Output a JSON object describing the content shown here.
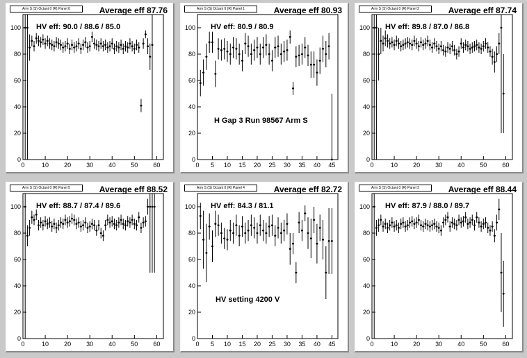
{
  "panels": [
    {
      "header": "Arm S (S) Octant 0 (R) Panel 0",
      "avg": "Average eff 87.76",
      "hv": "HV eff:    90.0 / 88.6 / 85.0",
      "note": ""
    },
    {
      "header": "Arm S (S) Octant 0 (R) Panel 1",
      "avg": "Average eff 80.93",
      "hv": "HV eff:    80.9 / 80.9",
      "note": "H Gap 3 Run 98567 Arm S"
    },
    {
      "header": "Arm S (S) Octant 0 (R) Panel 2",
      "avg": "Average eff 87.74",
      "hv": "HV eff:    89.8 / 87.0 / 86.8",
      "note": ""
    },
    {
      "header": "Arm S (S) Octant 0 (R) Panel 5",
      "avg": "Average eff 88.52",
      "hv": "HV eff:    88.7 / 87.4 / 89.6",
      "note": ""
    },
    {
      "header": "Arm S (S) Octant 0 (R) Panel 4",
      "avg": "Average eff 82.72",
      "hv": "HV eff:    84.3 / 81.1",
      "note": "HV setting 4200 V"
    },
    {
      "header": "Arm S (S) Octant 0 (R) Panel 3",
      "avg": "Average eff 88.44",
      "hv": "HV eff:    87.9 / 88.0 / 89.7",
      "note": ""
    }
  ],
  "chart_data": [
    {
      "type": "scatter",
      "xlim": [
        0,
        63
      ],
      "ylim": [
        0,
        110
      ],
      "xticks": [
        0,
        10,
        20,
        30,
        40,
        50,
        60
      ],
      "yticks": [
        0,
        20,
        40,
        60,
        80,
        100
      ],
      "x": [
        1,
        2,
        3,
        4,
        5,
        6,
        7,
        8,
        9,
        10,
        11,
        12,
        13,
        14,
        15,
        16,
        17,
        18,
        19,
        20,
        21,
        22,
        23,
        24,
        25,
        26,
        27,
        28,
        29,
        30,
        31,
        32,
        33,
        34,
        35,
        36,
        37,
        38,
        39,
        40,
        41,
        42,
        43,
        44,
        45,
        46,
        47,
        48,
        49,
        50,
        51,
        52,
        53,
        54,
        55,
        56,
        57,
        58
      ],
      "y": [
        100,
        100,
        85,
        90,
        86,
        92,
        90,
        89,
        91,
        88,
        90,
        88,
        87,
        86,
        89,
        88,
        87,
        85,
        86,
        88,
        84,
        87,
        85,
        86,
        88,
        84,
        87,
        89,
        85,
        86,
        93,
        88,
        87,
        86,
        88,
        86,
        87,
        85,
        86,
        88,
        84,
        86,
        85,
        87,
        84,
        86,
        85,
        88,
        86,
        84,
        87,
        85,
        41,
        88,
        95,
        86,
        78,
        87
      ],
      "err": [
        100,
        100,
        10,
        4,
        4,
        4,
        4,
        4,
        4,
        4,
        4,
        4,
        4,
        4,
        4,
        4,
        4,
        4,
        4,
        4,
        4,
        4,
        4,
        4,
        4,
        4,
        4,
        4,
        4,
        4,
        4,
        4,
        4,
        4,
        4,
        4,
        4,
        4,
        4,
        4,
        4,
        4,
        4,
        4,
        4,
        4,
        4,
        4,
        4,
        4,
        4,
        4,
        5,
        4,
        3,
        6,
        10,
        100
      ]
    },
    {
      "type": "scatter",
      "xlim": [
        0,
        47
      ],
      "ylim": [
        0,
        110
      ],
      "xticks": [
        0,
        5,
        10,
        15,
        20,
        25,
        30,
        35,
        40,
        45
      ],
      "yticks": [
        0,
        20,
        40,
        60,
        80,
        100
      ],
      "x": [
        1,
        2,
        3,
        4,
        5,
        6,
        7,
        8,
        9,
        10,
        11,
        12,
        13,
        14,
        15,
        16,
        17,
        18,
        19,
        20,
        21,
        22,
        23,
        24,
        25,
        26,
        27,
        28,
        29,
        30,
        31,
        32,
        33,
        34,
        35,
        36,
        37,
        38,
        39,
        40,
        41,
        42,
        43,
        44,
        45
      ],
      "y": [
        58,
        66,
        78,
        89,
        89,
        65,
        84,
        83,
        84,
        82,
        80,
        85,
        84,
        80,
        75,
        88,
        86,
        80,
        83,
        85,
        80,
        85,
        87,
        80,
        75,
        85,
        86,
        80,
        82,
        83,
        93,
        54,
        78,
        79,
        80,
        85,
        79,
        72,
        72,
        66,
        75,
        84,
        80,
        86,
        0
      ],
      "err": [
        10,
        10,
        10,
        8,
        8,
        10,
        8,
        8,
        8,
        8,
        8,
        8,
        8,
        8,
        8,
        8,
        8,
        8,
        8,
        8,
        8,
        8,
        8,
        8,
        8,
        8,
        8,
        8,
        8,
        8,
        5,
        5,
        8,
        8,
        8,
        8,
        8,
        10,
        10,
        10,
        10,
        10,
        10,
        10,
        50
      ]
    },
    {
      "type": "scatter",
      "xlim": [
        0,
        63
      ],
      "ylim": [
        0,
        110
      ],
      "xticks": [
        0,
        10,
        20,
        30,
        40,
        50,
        60
      ],
      "yticks": [
        0,
        20,
        40,
        60,
        80,
        100
      ],
      "x": [
        1,
        2,
        3,
        4,
        5,
        6,
        7,
        8,
        9,
        10,
        11,
        12,
        13,
        14,
        15,
        16,
        17,
        18,
        19,
        20,
        21,
        22,
        23,
        24,
        25,
        26,
        27,
        28,
        29,
        30,
        31,
        32,
        33,
        34,
        35,
        36,
        37,
        38,
        39,
        40,
        41,
        42,
        43,
        44,
        45,
        46,
        47,
        48,
        49,
        50,
        51,
        52,
        53,
        54,
        55,
        56,
        57,
        58,
        59
      ],
      "y": [
        100,
        100,
        80,
        90,
        88,
        92,
        90,
        88,
        89,
        87,
        90,
        88,
        86,
        87,
        88,
        89,
        88,
        87,
        90,
        88,
        86,
        89,
        87,
        88,
        90,
        87,
        85,
        88,
        86,
        84,
        86,
        83,
        82,
        85,
        84,
        86,
        83,
        80,
        82,
        88,
        85,
        87,
        86,
        84,
        85,
        86,
        87,
        85,
        84,
        86,
        88,
        85,
        82,
        78,
        74,
        80,
        88,
        100,
        50
      ],
      "err": [
        100,
        100,
        20,
        10,
        6,
        6,
        5,
        4,
        4,
        4,
        4,
        4,
        4,
        4,
        4,
        4,
        4,
        4,
        4,
        4,
        4,
        4,
        4,
        4,
        4,
        4,
        4,
        4,
        4,
        4,
        4,
        4,
        4,
        4,
        4,
        4,
        4,
        4,
        4,
        4,
        4,
        4,
        4,
        4,
        4,
        4,
        4,
        4,
        4,
        4,
        4,
        4,
        4,
        6,
        8,
        6,
        8,
        80,
        30
      ]
    },
    {
      "type": "scatter",
      "xlim": [
        0,
        63
      ],
      "ylim": [
        0,
        110
      ],
      "xticks": [
        0,
        10,
        20,
        30,
        40,
        50,
        60
      ],
      "yticks": [
        0,
        20,
        40,
        60,
        80,
        100
      ],
      "x": [
        1,
        2,
        3,
        4,
        5,
        6,
        7,
        8,
        9,
        10,
        11,
        12,
        13,
        14,
        15,
        16,
        17,
        18,
        19,
        20,
        21,
        22,
        23,
        24,
        25,
        26,
        27,
        28,
        29,
        30,
        31,
        32,
        33,
        34,
        35,
        36,
        37,
        38,
        39,
        40,
        41,
        42,
        43,
        44,
        45,
        46,
        47,
        48,
        49,
        50,
        51,
        52,
        53,
        54,
        55,
        56,
        57,
        58,
        59
      ],
      "y": [
        100,
        78,
        84,
        92,
        90,
        94,
        86,
        88,
        86,
        89,
        87,
        88,
        85,
        87,
        84,
        86,
        88,
        87,
        90,
        88,
        89,
        91,
        90,
        87,
        88,
        85,
        86,
        88,
        84,
        85,
        87,
        86,
        82,
        86,
        80,
        78,
        86,
        90,
        88,
        89,
        87,
        86,
        88,
        90,
        87,
        86,
        89,
        88,
        90,
        87,
        86,
        92,
        84,
        88,
        89,
        100,
        100,
        100,
        100
      ],
      "err": [
        100,
        8,
        6,
        5,
        4,
        4,
        4,
        4,
        4,
        4,
        4,
        4,
        4,
        4,
        4,
        4,
        4,
        4,
        4,
        4,
        4,
        4,
        4,
        4,
        4,
        4,
        4,
        4,
        4,
        4,
        4,
        4,
        4,
        4,
        4,
        4,
        4,
        4,
        4,
        4,
        4,
        4,
        4,
        4,
        4,
        4,
        4,
        4,
        4,
        4,
        4,
        4,
        4,
        4,
        4,
        6,
        50,
        50,
        50
      ]
    },
    {
      "type": "scatter",
      "xlim": [
        0,
        47
      ],
      "ylim": [
        0,
        110
      ],
      "xticks": [
        0,
        5,
        10,
        15,
        20,
        25,
        30,
        35,
        40,
        45
      ],
      "yticks": [
        0,
        20,
        40,
        60,
        80,
        100
      ],
      "x": [
        1,
        2,
        3,
        4,
        5,
        6,
        7,
        8,
        9,
        10,
        11,
        12,
        13,
        14,
        15,
        16,
        17,
        18,
        19,
        20,
        21,
        22,
        23,
        24,
        25,
        26,
        27,
        28,
        29,
        30,
        31,
        32,
        33,
        34,
        35,
        36,
        37,
        38,
        39,
        40,
        41,
        42,
        43,
        44,
        45
      ],
      "y": [
        93,
        75,
        65,
        85,
        70,
        87,
        86,
        80,
        76,
        75,
        82,
        80,
        86,
        78,
        85,
        80,
        82,
        86,
        84,
        80,
        86,
        82,
        80,
        85,
        86,
        78,
        84,
        80,
        82,
        87,
        68,
        72,
        50,
        88,
        82,
        95,
        80,
        76,
        90,
        72,
        84,
        75,
        50,
        74,
        74
      ],
      "err": [
        10,
        22,
        22,
        10,
        12,
        10,
        8,
        8,
        8,
        8,
        8,
        8,
        8,
        8,
        8,
        8,
        8,
        8,
        8,
        8,
        8,
        8,
        8,
        8,
        8,
        8,
        8,
        8,
        8,
        8,
        12,
        8,
        8,
        8,
        8,
        6,
        12,
        15,
        10,
        15,
        10,
        15,
        20,
        25,
        25
      ]
    },
    {
      "type": "scatter",
      "xlim": [
        0,
        63
      ],
      "ylim": [
        0,
        110
      ],
      "xticks": [
        0,
        10,
        20,
        30,
        40,
        50,
        60
      ],
      "yticks": [
        0,
        20,
        40,
        60,
        80,
        100
      ],
      "x": [
        1,
        2,
        3,
        4,
        5,
        6,
        7,
        8,
        9,
        10,
        11,
        12,
        13,
        14,
        15,
        16,
        17,
        18,
        19,
        20,
        21,
        22,
        23,
        24,
        25,
        26,
        27,
        28,
        29,
        30,
        31,
        32,
        33,
        34,
        35,
        36,
        37,
        38,
        39,
        40,
        41,
        42,
        43,
        44,
        45,
        46,
        47,
        48,
        49,
        50,
        51,
        52,
        53,
        54,
        55,
        56,
        57,
        58,
        59
      ],
      "y": [
        100,
        84,
        86,
        90,
        85,
        87,
        84,
        86,
        88,
        85,
        86,
        84,
        87,
        88,
        85,
        86,
        88,
        89,
        87,
        88,
        90,
        86,
        85,
        87,
        86,
        85,
        86,
        87,
        85,
        84,
        82,
        88,
        90,
        92,
        85,
        88,
        87,
        86,
        90,
        88,
        89,
        92,
        87,
        88,
        90,
        86,
        92,
        88,
        85,
        87,
        88,
        84,
        82,
        85,
        78,
        88,
        98,
        50,
        34
      ],
      "err": [
        100,
        6,
        5,
        4,
        4,
        4,
        4,
        4,
        4,
        4,
        4,
        4,
        4,
        4,
        4,
        4,
        4,
        4,
        4,
        4,
        4,
        4,
        4,
        4,
        4,
        4,
        4,
        4,
        4,
        4,
        4,
        4,
        4,
        4,
        4,
        4,
        4,
        4,
        4,
        4,
        4,
        4,
        4,
        4,
        4,
        4,
        4,
        4,
        4,
        4,
        4,
        4,
        4,
        4,
        5,
        6,
        8,
        30,
        25
      ]
    }
  ]
}
